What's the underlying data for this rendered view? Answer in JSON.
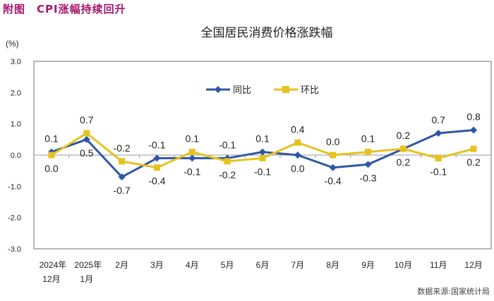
{
  "figure_title": "附图　CPI涨幅持续回升",
  "source": "数据来源:国家统计局",
  "chart_data": {
    "type": "line",
    "title": "全国居民消费价格涨跌幅",
    "ylabel": "(%)",
    "ylim": [
      -3.0,
      3.0
    ],
    "yticks": [
      "3.0",
      "2.0",
      "1.0",
      "0.0",
      "-1.0",
      "-2.0",
      "-3.0"
    ],
    "ytick_values": [
      3,
      2,
      1,
      0,
      -1,
      -2,
      -3
    ],
    "categories": [
      [
        "2024年",
        "12月"
      ],
      [
        "2025年",
        "1月"
      ],
      [
        "2月"
      ],
      [
        "3月"
      ],
      [
        "4月"
      ],
      [
        "5月"
      ],
      [
        "6月"
      ],
      [
        "7月"
      ],
      [
        "8月"
      ],
      [
        "9月"
      ],
      [
        "10月"
      ],
      [
        "11月"
      ],
      [
        "12月"
      ]
    ],
    "legend_position": "top-center",
    "series": [
      {
        "name": "同比",
        "color": "#2e56a6",
        "marker": "diamond",
        "values": [
          0.1,
          0.5,
          -0.7,
          -0.1,
          -0.1,
          -0.1,
          0.1,
          0.0,
          -0.4,
          -0.3,
          0.2,
          0.7,
          0.8
        ],
        "labels": [
          "0.1",
          "0.5",
          "-0.7",
          "-0.1",
          "-0.1",
          "-0.1",
          "0.1",
          "0.0",
          "-0.4",
          "-0.3",
          "0.2",
          "0.7",
          "0.8"
        ],
        "label_side": [
          "above",
          "below",
          "below",
          "above",
          "below",
          "above",
          "above",
          "below",
          "below",
          "below",
          "below",
          "above",
          "above"
        ]
      },
      {
        "name": "环比",
        "color": "#e6c21f",
        "marker": "square",
        "values": [
          0.0,
          0.7,
          -0.2,
          -0.4,
          0.1,
          -0.2,
          -0.1,
          0.4,
          0.0,
          0.1,
          0.2,
          -0.1,
          0.2
        ],
        "labels": [
          "0.0",
          "0.7",
          "-0.2",
          "-0.4",
          "0.1",
          "-0.2",
          "-0.1",
          "0.4",
          "0.0",
          "0.1",
          "0.2",
          "-0.1",
          "0.2"
        ],
        "label_side": [
          "below",
          "above",
          "above",
          "below",
          "above",
          "below",
          "below",
          "above",
          "above",
          "above",
          "above",
          "below",
          "below"
        ]
      }
    ]
  }
}
